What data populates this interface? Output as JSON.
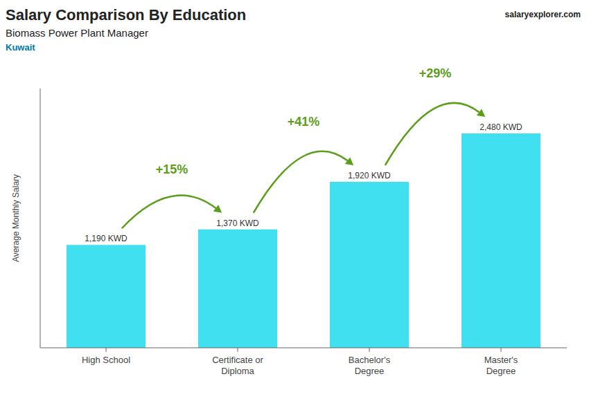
{
  "chart_data": {
    "type": "bar",
    "title": "Salary Comparison By Education",
    "subtitle": "Biomass Power Plant Manager",
    "country": "Kuwait",
    "source": "salaryexplorer.com",
    "ylabel": "Average Monthly Salary",
    "categories": [
      "High School",
      "Certificate or\nDiploma",
      "Bachelor's\nDegree",
      "Master's\nDegree"
    ],
    "values": [
      1190,
      1370,
      1920,
      2480
    ],
    "value_labels": [
      "1,190 KWD",
      "1,370 KWD",
      "1,920 KWD",
      "2,480 KWD"
    ],
    "annotations": [
      "+15%",
      "+41%",
      "+29%"
    ],
    "color": "#40e0f0",
    "ylim": [
      0,
      3000
    ],
    "grid": false,
    "data_labels": true,
    "tick_labels": "x"
  }
}
